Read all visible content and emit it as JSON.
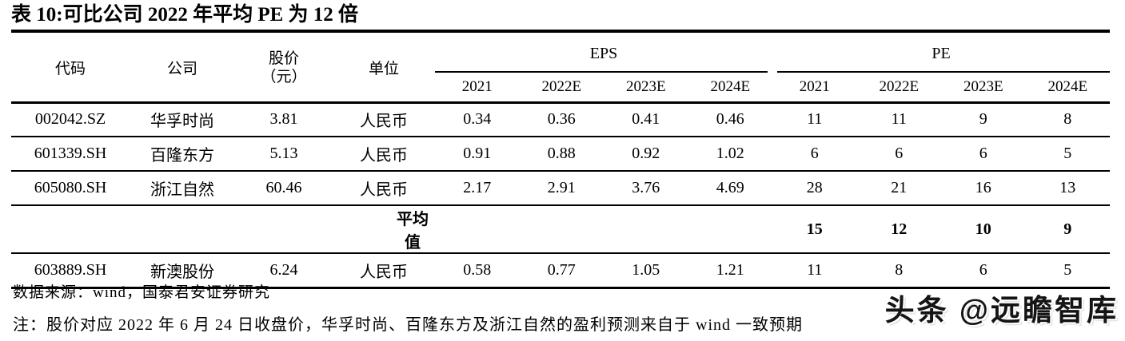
{
  "page": {
    "title": "表 10:可比公司 2022 年平均 PE 为 12 倍",
    "background_color": "#ffffff",
    "text_color": "#000000"
  },
  "table": {
    "headers": {
      "code": "代码",
      "company": "公司",
      "price_line1": "股价",
      "price_line2": "（元）",
      "unit": "单位",
      "eps_group": "EPS",
      "pe_group": "PE"
    },
    "years": [
      "2021",
      "2022E",
      "2023E",
      "2024E"
    ],
    "rows": [
      {
        "code": "002042.SZ",
        "company": "华孚时尚",
        "price": "3.81",
        "unit": "人民币",
        "eps": [
          "0.34",
          "0.36",
          "0.41",
          "0.46"
        ],
        "pe": [
          "11",
          "11",
          "9",
          "8"
        ]
      },
      {
        "code": "601339.SH",
        "company": "百隆东方",
        "price": "5.13",
        "unit": "人民币",
        "eps": [
          "0.91",
          "0.88",
          "0.92",
          "1.02"
        ],
        "pe": [
          "6",
          "6",
          "6",
          "5"
        ]
      },
      {
        "code": "605080.SH",
        "company": "浙江自然",
        "price": "60.46",
        "unit": "人民币",
        "eps": [
          "2.17",
          "2.91",
          "3.76",
          "4.69"
        ],
        "pe": [
          "28",
          "21",
          "16",
          "13"
        ]
      }
    ],
    "average_row": {
      "label": "平均值",
      "pe": [
        "15",
        "12",
        "10",
        "9"
      ]
    },
    "extra_row": {
      "code": "603889.SH",
      "company": "新澳股份",
      "price": "6.24",
      "unit": "人民币",
      "eps": [
        "0.58",
        "0.77",
        "1.05",
        "1.21"
      ],
      "pe": [
        "11",
        "8",
        "6",
        "5"
      ]
    }
  },
  "footer": {
    "source": "数据来源：wind，国泰君安证券研究",
    "note": "注：股价对应 2022 年 6 月 24 日收盘价，华孚时尚、百隆东方及浙江自然的盈利预测来自于 wind 一致预期",
    "watermark": "头条 @远瞻智库"
  }
}
